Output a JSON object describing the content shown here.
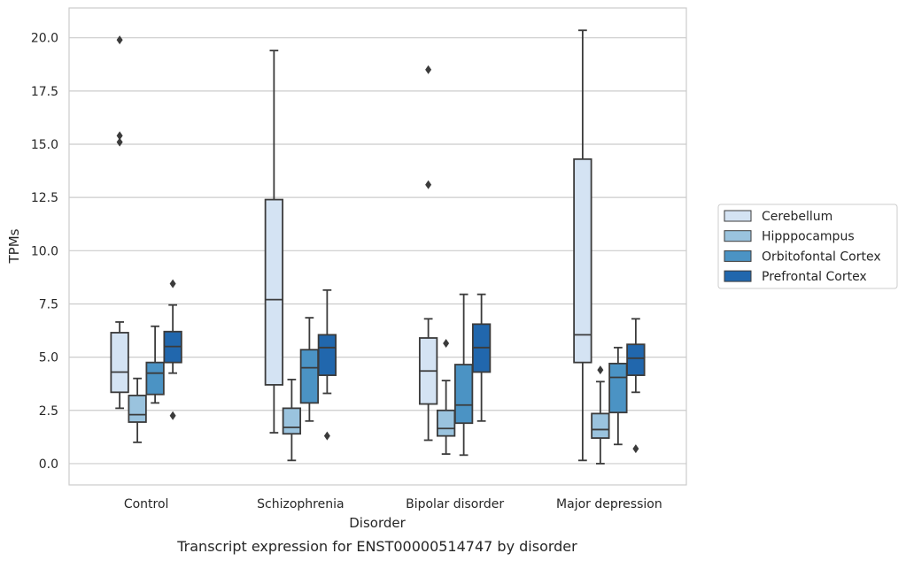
{
  "caption": "Transcript expression for ENST00000514747 by disorder",
  "chart_data": {
    "type": "box",
    "xlabel": "Disorder",
    "ylabel": "TPMs",
    "ylim": [
      -1.0,
      21.4
    ],
    "yticks": [
      0.0,
      2.5,
      5.0,
      7.5,
      10.0,
      12.5,
      15.0,
      17.5,
      20.0
    ],
    "ytick_labels": [
      "0.0",
      "2.5",
      "5.0",
      "7.5",
      "10.0",
      "12.5",
      "15.0",
      "17.5",
      "20.0"
    ],
    "grid": true,
    "legend_position": "right",
    "categories": [
      "Control",
      "Schizophrenia",
      "Bipolar disorder",
      "Major depression"
    ],
    "series": [
      {
        "name": "Cerebellum",
        "color": "#d4e3f3",
        "boxes": [
          {
            "whisker_low": 2.6,
            "q1": 3.35,
            "median": 4.3,
            "q3": 6.15,
            "whisker_high": 6.65,
            "outliers": [
              19.9,
              15.4,
              15.1
            ]
          },
          {
            "whisker_low": 1.45,
            "q1": 3.7,
            "median": 7.7,
            "q3": 12.4,
            "whisker_high": 19.4,
            "outliers": []
          },
          {
            "whisker_low": 1.1,
            "q1": 2.8,
            "median": 4.35,
            "q3": 5.9,
            "whisker_high": 6.8,
            "outliers": [
              18.5,
              13.1
            ]
          },
          {
            "whisker_low": 0.15,
            "q1": 4.75,
            "median": 6.05,
            "q3": 14.3,
            "whisker_high": 20.35,
            "outliers": []
          }
        ]
      },
      {
        "name": "Hipppocampus",
        "color": "#9ac3de",
        "boxes": [
          {
            "whisker_low": 1.0,
            "q1": 1.95,
            "median": 2.3,
            "q3": 3.2,
            "whisker_high": 4.0,
            "outliers": []
          },
          {
            "whisker_low": 0.15,
            "q1": 1.4,
            "median": 1.7,
            "q3": 2.6,
            "whisker_high": 3.95,
            "outliers": []
          },
          {
            "whisker_low": 0.45,
            "q1": 1.3,
            "median": 1.65,
            "q3": 2.5,
            "whisker_high": 3.9,
            "outliers": [
              5.65
            ]
          },
          {
            "whisker_low": 0.0,
            "q1": 1.2,
            "median": 1.6,
            "q3": 2.35,
            "whisker_high": 3.85,
            "outliers": [
              4.4
            ]
          }
        ]
      },
      {
        "name": "Orbitofontal Cortex",
        "color": "#4b93c4",
        "boxes": [
          {
            "whisker_low": 2.85,
            "q1": 3.25,
            "median": 4.25,
            "q3": 4.75,
            "whisker_high": 6.45,
            "outliers": []
          },
          {
            "whisker_low": 2.0,
            "q1": 2.85,
            "median": 4.5,
            "q3": 5.35,
            "whisker_high": 6.85,
            "outliers": []
          },
          {
            "whisker_low": 0.4,
            "q1": 1.9,
            "median": 2.75,
            "q3": 4.65,
            "whisker_high": 7.95,
            "outliers": []
          },
          {
            "whisker_low": 0.9,
            "q1": 2.4,
            "median": 4.05,
            "q3": 4.7,
            "whisker_high": 5.45,
            "outliers": []
          }
        ]
      },
      {
        "name": "Prefrontal Cortex",
        "color": "#2167ad",
        "boxes": [
          {
            "whisker_low": 4.25,
            "q1": 4.75,
            "median": 5.5,
            "q3": 6.2,
            "whisker_high": 7.45,
            "outliers": [
              8.45,
              2.25
            ]
          },
          {
            "whisker_low": 3.3,
            "q1": 4.15,
            "median": 5.45,
            "q3": 6.05,
            "whisker_high": 8.15,
            "outliers": [
              1.3
            ]
          },
          {
            "whisker_low": 2.0,
            "q1": 4.3,
            "median": 5.45,
            "q3": 6.55,
            "whisker_high": 7.95,
            "outliers": []
          },
          {
            "whisker_low": 3.35,
            "q1": 4.15,
            "median": 4.95,
            "q3": 5.6,
            "whisker_high": 6.8,
            "outliers": [
              0.7
            ]
          }
        ]
      }
    ]
  }
}
